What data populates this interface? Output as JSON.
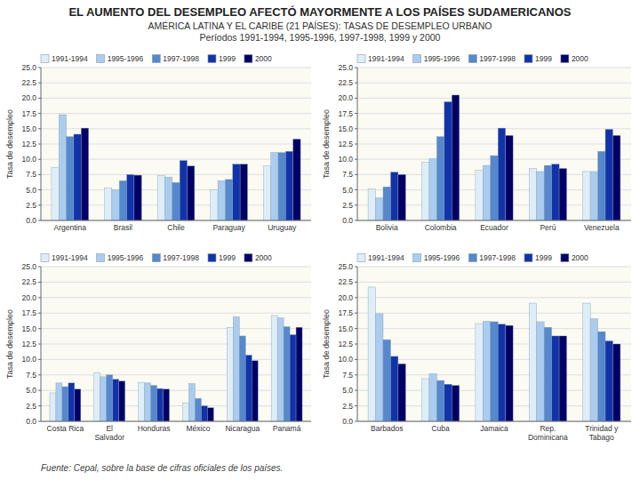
{
  "title": "EL AUMENTO DEL DESEMPLEO AFECTÓ MAYORMENTE A LOS PAÍSES SUDAMERICANOS",
  "subtitle": [
    "AMÉRICA LATINA Y EL CARIBE (21 PAÍSES): TASAS DE DESEMPLEO URBANO",
    "Períodos 1991-1994, 1995-1996, 1997-1998, 1999 y 2000"
  ],
  "annotations": [
    "Fuente: Cepal, sobre la base de cifras oficiales de los países."
  ],
  "chart_data": [
    {
      "type": "bar",
      "y_label": "Tasa de desempleo",
      "categories": [
        "Argentina",
        "Brasil",
        "Chile",
        "Paraguay",
        "Uruguay"
      ],
      "series": [
        {
          "name": "1991-1994",
          "color": "#ddeef8",
          "values": [
            8.7,
            5.3,
            7.3,
            5.0,
            8.9
          ]
        },
        {
          "name": "1995-1996",
          "color": "#aaccee",
          "values": [
            17.3,
            5.0,
            7.1,
            6.5,
            11.1
          ]
        },
        {
          "name": "1997-1998",
          "color": "#5588cc",
          "values": [
            13.7,
            6.5,
            6.2,
            6.7,
            11.1
          ]
        },
        {
          "name": "1999",
          "color": "#1133aa",
          "values": [
            14.1,
            7.5,
            9.8,
            9.2,
            11.3
          ]
        },
        {
          "name": "2000",
          "color": "#000066",
          "values": [
            15.1,
            7.4,
            8.9,
            9.2,
            13.3
          ]
        }
      ],
      "ylim": [
        0,
        25
      ],
      "yticks": [
        {
          "value": 0,
          "label": "0.0"
        },
        2.5,
        {
          "value": 5,
          "label": "5.0"
        },
        7.5,
        {
          "value": 10,
          "label": "10.0"
        },
        12.5,
        {
          "value": 15,
          "label": "15.0"
        },
        17.5,
        {
          "value": 20,
          "label": "20.0"
        },
        22.5,
        {
          "value": 25,
          "label": "25.0"
        }
      ],
      "grid": true,
      "legend": "upper left"
    },
    {
      "type": "bar",
      "y_label": "Tasa de desempleo",
      "categories": [
        "Bolivia",
        "Colombia",
        "Ecuador",
        "Perú",
        "Venezuela"
      ],
      "series": [
        {
          "name": "1991-1994",
          "color": "#ddeef8",
          "values": [
            5.2,
            9.5,
            8.2,
            8.5,
            8.0
          ]
        },
        {
          "name": "1995-1996",
          "color": "#aaccee",
          "values": [
            3.7,
            10.1,
            9.0,
            8.0,
            8.0
          ]
        },
        {
          "name": "1997-1998",
          "color": "#5588cc",
          "values": [
            5.5,
            13.7,
            10.6,
            9.0,
            11.3
          ]
        },
        {
          "name": "1999",
          "color": "#1133aa",
          "values": [
            7.9,
            19.4,
            15.1,
            9.2,
            14.9
          ]
        },
        {
          "name": "2000",
          "color": "#000066",
          "values": [
            7.5,
            20.5,
            13.9,
            8.5,
            13.9
          ]
        }
      ],
      "ylim": [
        0,
        25
      ],
      "yticks": [
        {
          "value": 0,
          "label": "0.0"
        },
        2.5,
        {
          "value": 5,
          "label": "5.0"
        },
        7.5,
        {
          "value": 10,
          "label": "10.0"
        },
        12.5,
        {
          "value": 15,
          "label": "15.0"
        },
        17.5,
        {
          "value": 20,
          "label": "20.0"
        },
        22.5,
        {
          "value": 25,
          "label": "25.0"
        }
      ],
      "grid": true,
      "legend": "upper left"
    },
    {
      "type": "bar",
      "y_label": "Tasa de desempleo",
      "categories": [
        "Costa Rica",
        "El\nSalvador",
        "Honduras",
        "México",
        "Nicaragua",
        "Panamá"
      ],
      "series": [
        {
          "name": "1991-1994",
          "color": "#ddeef8",
          "values": [
            4.6,
            7.9,
            6.3,
            3.0,
            15.2,
            17.1
          ]
        },
        {
          "name": "1995-1996",
          "color": "#aaccee",
          "values": [
            6.2,
            7.2,
            6.2,
            6.1,
            16.9,
            16.7
          ]
        },
        {
          "name": "1997-1998",
          "color": "#5588cc",
          "values": [
            5.6,
            7.5,
            5.8,
            3.7,
            13.8,
            15.3
          ]
        },
        {
          "name": "1999",
          "color": "#1133aa",
          "values": [
            6.2,
            6.8,
            5.3,
            2.5,
            10.7,
            14.0
          ]
        },
        {
          "name": "2000",
          "color": "#000066",
          "values": [
            5.2,
            6.5,
            5.2,
            2.2,
            9.8,
            15.2
          ]
        }
      ],
      "ylim": [
        0,
        25
      ],
      "yticks": [
        {
          "value": 0,
          "label": "0.0"
        },
        2.5,
        {
          "value": 5,
          "label": "5.0"
        },
        7.5,
        {
          "value": 10,
          "label": "10.0"
        },
        12.5,
        {
          "value": 15,
          "label": "15.0"
        },
        17.5,
        {
          "value": 20,
          "label": "20.0"
        },
        22.5,
        {
          "value": 25,
          "label": "25.0"
        }
      ],
      "grid": true,
      "legend": "upper left"
    },
    {
      "type": "bar",
      "y_label": "Tasa de desempleo",
      "categories": [
        "Barbados",
        "Cuba",
        "Jamaica",
        "Rep.\nDominicana",
        "Trinidad y\nTabago"
      ],
      "series": [
        {
          "name": "1991-1994",
          "color": "#ddeef8",
          "values": [
            21.7,
            6.9,
            15.8,
            19.1,
            19.1
          ]
        },
        {
          "name": "1995-1996",
          "color": "#aaccee",
          "values": [
            17.4,
            7.7,
            16.2,
            16.1,
            16.6
          ]
        },
        {
          "name": "1997-1998",
          "color": "#5588cc",
          "values": [
            13.2,
            6.6,
            16.1,
            15.2,
            14.5
          ]
        },
        {
          "name": "1999",
          "color": "#1133aa",
          "values": [
            10.5,
            6.0,
            15.7,
            13.8,
            13.0
          ]
        },
        {
          "name": "2000",
          "color": "#000066",
          "values": [
            9.3,
            5.8,
            15.5,
            13.8,
            12.5
          ]
        }
      ],
      "ylim": [
        0,
        25
      ],
      "yticks": [
        {
          "value": 0,
          "label": "0.0"
        },
        2.5,
        {
          "value": 5,
          "label": "5.0"
        },
        7.5,
        {
          "value": 10,
          "label": "10.0"
        },
        12.5,
        {
          "value": 15,
          "label": "15.0"
        },
        17.5,
        {
          "value": 20,
          "label": "20.0"
        },
        22.5,
        {
          "value": 25,
          "label": "25.0"
        }
      ],
      "grid": true,
      "legend": "upper left"
    }
  ]
}
